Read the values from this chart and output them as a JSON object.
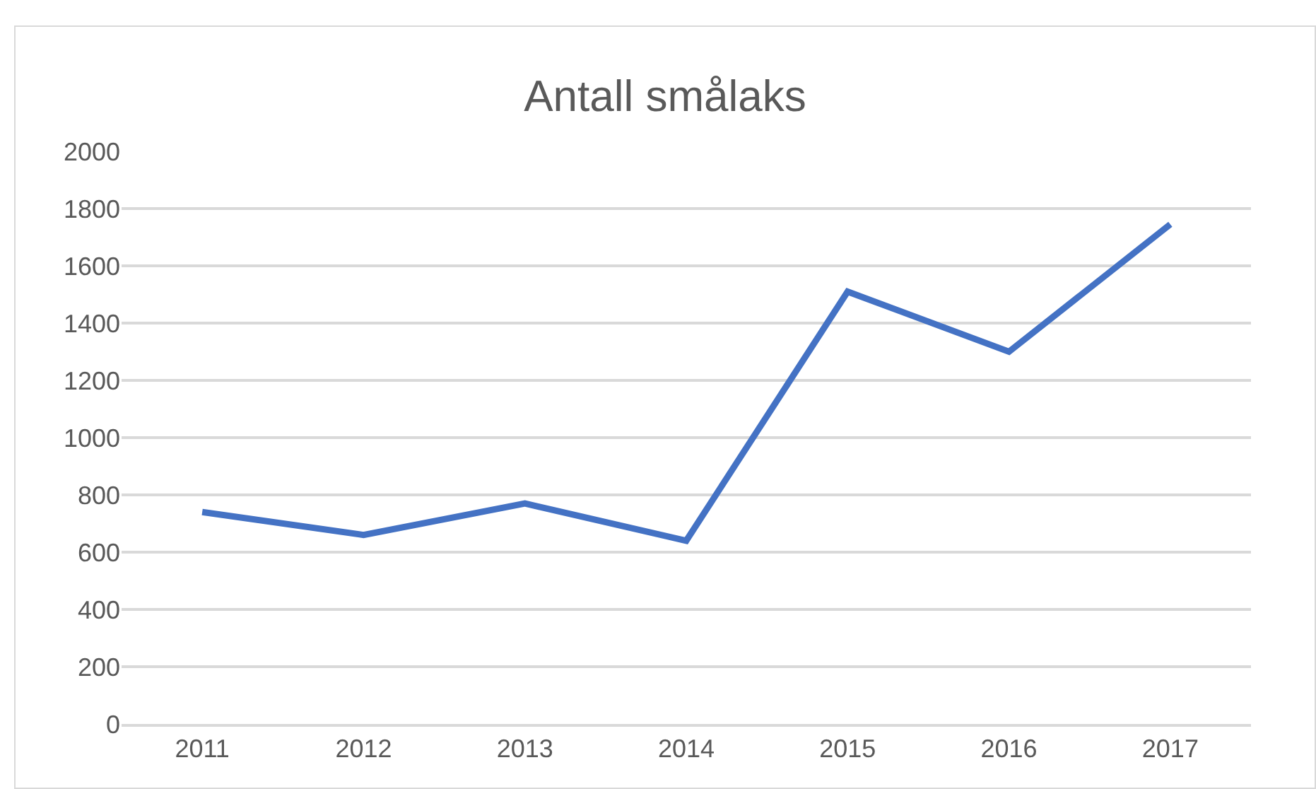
{
  "chart_data": {
    "type": "line",
    "title": "Antall smålaks",
    "categories": [
      "2011",
      "2012",
      "2013",
      "2014",
      "2015",
      "2016",
      "2017"
    ],
    "series": [
      {
        "color": "#4472c4",
        "values": [
          740,
          660,
          770,
          640,
          1510,
          1300,
          1745
        ]
      }
    ],
    "ylim": [
      0,
      2000
    ],
    "yticks": [
      0,
      200,
      400,
      600,
      800,
      1000,
      1200,
      1400,
      1600,
      1800,
      2000
    ],
    "grid": "y",
    "legend": false,
    "marker": "none",
    "line_style": "solid"
  }
}
